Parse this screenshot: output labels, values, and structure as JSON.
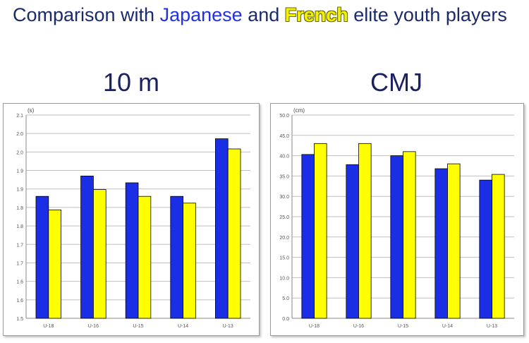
{
  "headline": {
    "prefix": "Comparison with ",
    "japanese": "Japanese",
    "middle": " and ",
    "french": "French",
    "suffix": " elite youth players"
  },
  "colors": {
    "japanese": "#1a2ee6",
    "french": "#ffff00",
    "gridline": "#bfbfbf",
    "axis": "#888888"
  },
  "chart_data": [
    {
      "type": "bar",
      "title": "10 m",
      "unit": "(s)",
      "categories": [
        "U-18",
        "U-16",
        "U-15",
        "U-14",
        "U-13"
      ],
      "series": [
        {
          "values": [
            1.86,
            1.92,
            1.9,
            1.86,
            2.03
          ]
        },
        {
          "values": [
            1.82,
            1.88,
            1.86,
            1.84,
            2.0
          ]
        }
      ],
      "ylim": [
        1.5,
        2.1
      ],
      "yticks": [
        "1.5",
        "1.6",
        "1.6",
        "1.7",
        "1.7",
        "1.8",
        "1.8",
        "1.9",
        "1.9",
        "2.0",
        "2.0",
        "2.1"
      ],
      "grid": true
    },
    {
      "type": "bar",
      "title": "CMJ",
      "unit": "(cm)",
      "categories": [
        "U-18",
        "U-16",
        "U-15",
        "U-14",
        "U-13"
      ],
      "series": [
        {
          "values": [
            40.3,
            37.8,
            40.0,
            36.8,
            34.0
          ]
        },
        {
          "values": [
            43.0,
            43.0,
            41.0,
            38.0,
            35.4
          ]
        }
      ],
      "ylim": [
        0,
        50
      ],
      "yticks": [
        "0.0",
        "5.0",
        "10.0",
        "15.0",
        "20.0",
        "25.0",
        "30.0",
        "35.0",
        "40.0",
        "45.0",
        "50.0"
      ],
      "grid": true
    }
  ]
}
